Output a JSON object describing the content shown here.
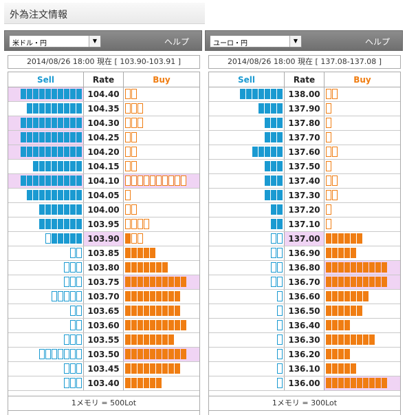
{
  "page_title": "外為注文情報",
  "panels": [
    {
      "id": "left",
      "pair": "米ドル・円",
      "help": "ヘルプ",
      "date_line": "2014/08/26  18:00 現在 [ 103.90-103.91 ]",
      "headers": {
        "sell": "Sell",
        "rate": "Rate",
        "buy": "Buy"
      },
      "footer": "1メモリ = 500Lot",
      "rows": [
        {
          "rate": "104.40",
          "sell": 10,
          "sell_filled": 10,
          "buy": 2,
          "buy_filled": 0,
          "hi_sell": true
        },
        {
          "rate": "104.35",
          "sell": 9,
          "sell_filled": 9,
          "buy": 3,
          "buy_filled": 0
        },
        {
          "rate": "104.30",
          "sell": 10,
          "sell_filled": 10,
          "buy": 3,
          "buy_filled": 0,
          "hi_sell": true
        },
        {
          "rate": "104.25",
          "sell": 10,
          "sell_filled": 10,
          "buy": 2,
          "buy_filled": 0,
          "hi_sell": true
        },
        {
          "rate": "104.20",
          "sell": 10,
          "sell_filled": 10,
          "buy": 2,
          "buy_filled": 0,
          "hi_sell": true
        },
        {
          "rate": "104.15",
          "sell": 8,
          "sell_filled": 8,
          "buy": 2,
          "buy_filled": 0
        },
        {
          "rate": "104.10",
          "sell": 10,
          "sell_filled": 10,
          "buy": 10,
          "buy_filled": 0,
          "hi_sell": true,
          "hi_buy": true
        },
        {
          "rate": "104.05",
          "sell": 9,
          "sell_filled": 9,
          "buy": 1,
          "buy_filled": 0
        },
        {
          "rate": "104.00",
          "sell": 7,
          "sell_filled": 7,
          "buy": 2,
          "buy_filled": 0
        },
        {
          "rate": "103.95",
          "sell": 7,
          "sell_filled": 7,
          "buy": 4,
          "buy_filled": 0
        },
        {
          "rate": "103.90",
          "sell": 6,
          "sell_filled": 5,
          "buy": 3,
          "buy_filled": 1,
          "hi_rate": true
        },
        {
          "rate": "103.85",
          "sell": 2,
          "sell_filled": 0,
          "buy": 5,
          "buy_filled": 5
        },
        {
          "rate": "103.80",
          "sell": 3,
          "sell_filled": 0,
          "buy": 7,
          "buy_filled": 7
        },
        {
          "rate": "103.75",
          "sell": 3,
          "sell_filled": 0,
          "buy": 10,
          "buy_filled": 10,
          "hi_buy": true
        },
        {
          "rate": "103.70",
          "sell": 5,
          "sell_filled": 0,
          "buy": 9,
          "buy_filled": 9
        },
        {
          "rate": "103.65",
          "sell": 2,
          "sell_filled": 0,
          "buy": 9,
          "buy_filled": 9
        },
        {
          "rate": "103.60",
          "sell": 2,
          "sell_filled": 0,
          "buy": 10,
          "buy_filled": 10
        },
        {
          "rate": "103.55",
          "sell": 3,
          "sell_filled": 0,
          "buy": 8,
          "buy_filled": 8
        },
        {
          "rate": "103.50",
          "sell": 7,
          "sell_filled": 0,
          "buy": 10,
          "buy_filled": 10,
          "hi_buy": true
        },
        {
          "rate": "103.45",
          "sell": 3,
          "sell_filled": 0,
          "buy": 9,
          "buy_filled": 9
        },
        {
          "rate": "103.40",
          "sell": 3,
          "sell_filled": 0,
          "buy": 6,
          "buy_filled": 6
        }
      ]
    },
    {
      "id": "right",
      "pair": "ユーロ・円",
      "help": "ヘルプ",
      "date_line": "2014/08/26  18:00 現在 [ 137.08-137.08 ]",
      "headers": {
        "sell": "Sell",
        "rate": "Rate",
        "buy": "Buy"
      },
      "footer": "1メモリ = 300Lot",
      "rows": [
        {
          "rate": "138.00",
          "sell": 7,
          "sell_filled": 7,
          "buy": 2,
          "buy_filled": 0
        },
        {
          "rate": "137.90",
          "sell": 4,
          "sell_filled": 4,
          "buy": 1,
          "buy_filled": 0
        },
        {
          "rate": "137.80",
          "sell": 3,
          "sell_filled": 3,
          "buy": 1,
          "buy_filled": 0
        },
        {
          "rate": "137.70",
          "sell": 3,
          "sell_filled": 3,
          "buy": 1,
          "buy_filled": 0
        },
        {
          "rate": "137.60",
          "sell": 5,
          "sell_filled": 5,
          "buy": 2,
          "buy_filled": 0
        },
        {
          "rate": "137.50",
          "sell": 3,
          "sell_filled": 3,
          "buy": 1,
          "buy_filled": 0
        },
        {
          "rate": "137.40",
          "sell": 3,
          "sell_filled": 3,
          "buy": 2,
          "buy_filled": 0
        },
        {
          "rate": "137.30",
          "sell": 3,
          "sell_filled": 3,
          "buy": 2,
          "buy_filled": 0
        },
        {
          "rate": "137.20",
          "sell": 2,
          "sell_filled": 2,
          "buy": 1,
          "buy_filled": 0
        },
        {
          "rate": "137.10",
          "sell": 2,
          "sell_filled": 2,
          "buy": 1,
          "buy_filled": 0
        },
        {
          "rate": "137.00",
          "sell": 2,
          "sell_filled": 0,
          "buy": 6,
          "buy_filled": 6,
          "hi_rate": true
        },
        {
          "rate": "136.90",
          "sell": 2,
          "sell_filled": 0,
          "buy": 5,
          "buy_filled": 5
        },
        {
          "rate": "136.80",
          "sell": 2,
          "sell_filled": 0,
          "buy": 10,
          "buy_filled": 10,
          "hi_buy": true
        },
        {
          "rate": "136.70",
          "sell": 2,
          "sell_filled": 0,
          "buy": 10,
          "buy_filled": 10,
          "hi_buy": true
        },
        {
          "rate": "136.60",
          "sell": 1,
          "sell_filled": 0,
          "buy": 7,
          "buy_filled": 7
        },
        {
          "rate": "136.50",
          "sell": 1,
          "sell_filled": 0,
          "buy": 6,
          "buy_filled": 6
        },
        {
          "rate": "136.40",
          "sell": 1,
          "sell_filled": 0,
          "buy": 4,
          "buy_filled": 4
        },
        {
          "rate": "136.30",
          "sell": 1,
          "sell_filled": 0,
          "buy": 8,
          "buy_filled": 8
        },
        {
          "rate": "136.20",
          "sell": 1,
          "sell_filled": 0,
          "buy": 4,
          "buy_filled": 4
        },
        {
          "rate": "136.10",
          "sell": 1,
          "sell_filled": 0,
          "buy": 5,
          "buy_filled": 5
        },
        {
          "rate": "136.00",
          "sell": 1,
          "sell_filled": 0,
          "buy": 10,
          "buy_filled": 10,
          "hi_buy": true
        }
      ]
    }
  ]
}
